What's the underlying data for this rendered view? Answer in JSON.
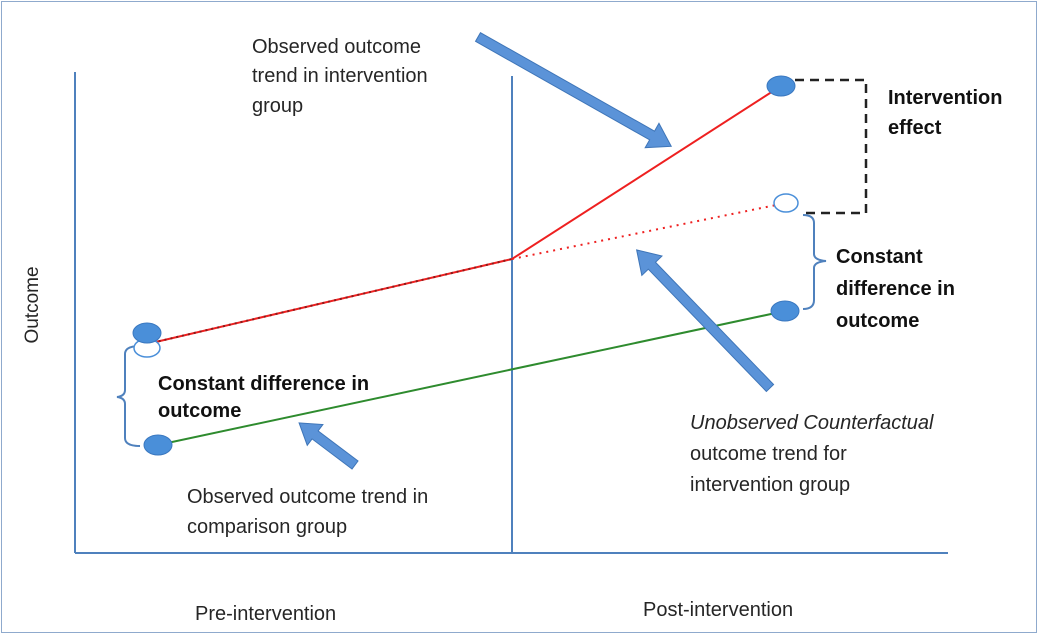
{
  "axis": {
    "y_label": "Outcome",
    "x_pre_label": "Pre-intervention",
    "x_post_label": "Post-intervention"
  },
  "annotations": {
    "observed_intervention": [
      "Observed outcome",
      "trend in intervention",
      "group"
    ],
    "intervention_effect": [
      "Intervention",
      "effect"
    ],
    "constant_difference_right": [
      "Constant",
      "difference in",
      "outcome"
    ],
    "constant_difference_left": [
      "Constant difference in",
      "outcome"
    ],
    "observed_comparison": [
      "Observed outcome trend in",
      "comparison group"
    ],
    "unobserved_counterfactual_italic": "Unobserved Counterfactual",
    "unobserved_counterfactual_rest": [
      "outcome trend for",
      "intervention group"
    ]
  },
  "colors": {
    "axis_line": "#4f81bd",
    "intervention_line": "#ee2020",
    "comparison_line": "#2e8b2e",
    "marker_fill": "#4a8fd9",
    "arrow_fill": "#5b93d8",
    "effect_bracket": "#222222"
  },
  "icons": {
    "callout_arrows": "block-arrow-icon",
    "markers": "ellipse-marker-icon"
  }
}
